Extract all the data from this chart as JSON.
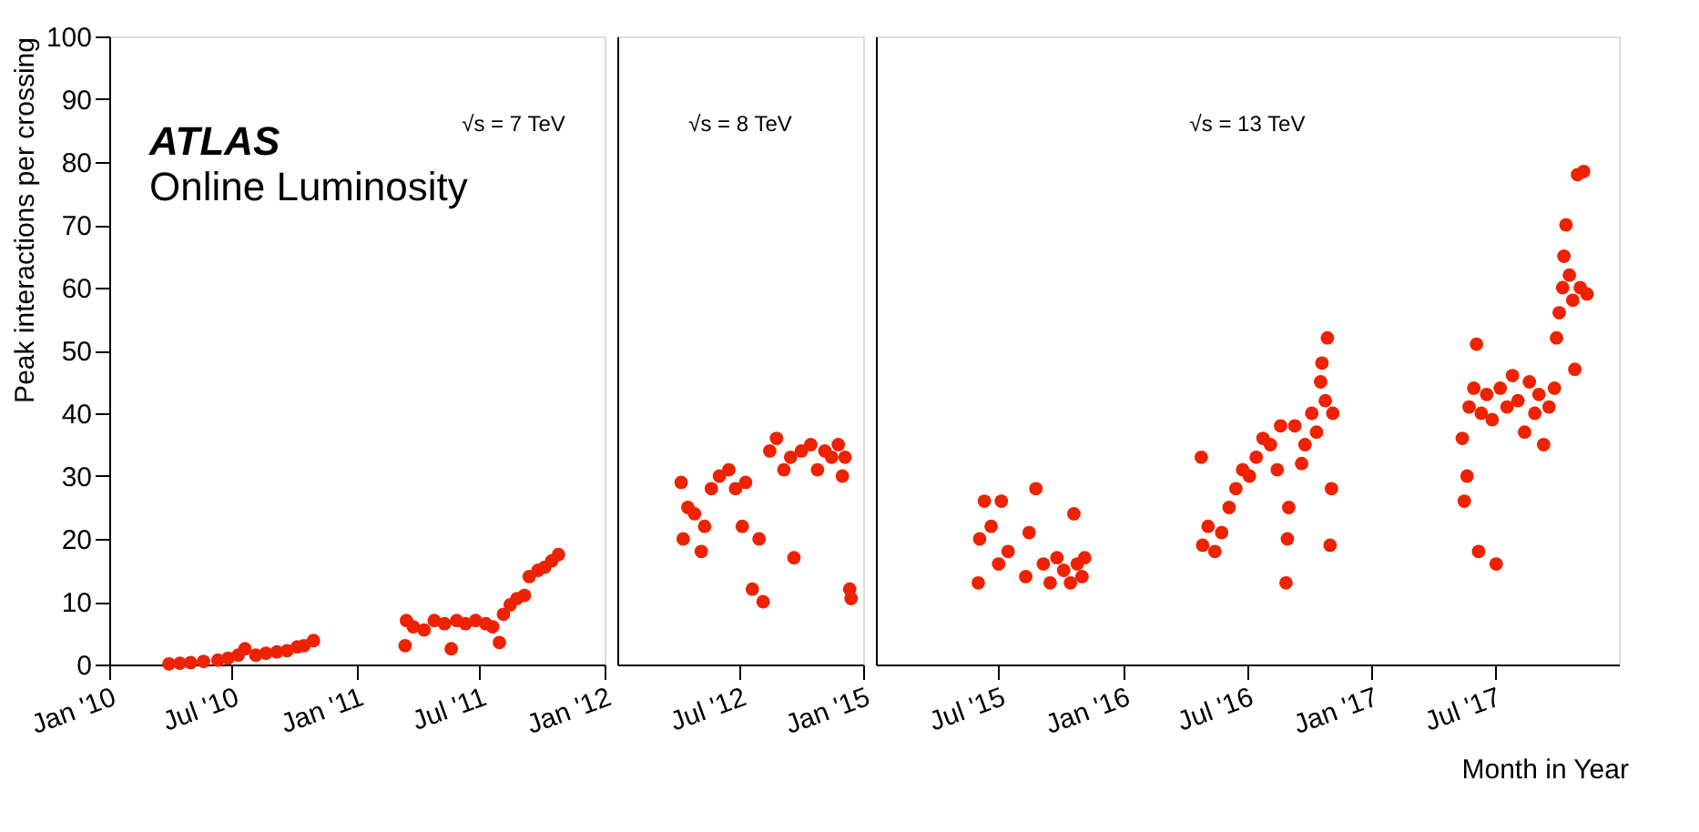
{
  "chart_data": [
    {
      "type": "scatter",
      "ylabel": "Peak interactions per crossing",
      "annotations": [
        "ATLAS",
        "Online Luminosity",
        "√s = 7 TeV"
      ],
      "color": "#ee2200",
      "marker": "circle",
      "grid": false,
      "x": [
        "2010-03-30",
        "2010-04-15",
        "2010-05-01",
        "2010-05-20",
        "2010-06-10",
        "2010-06-25",
        "2010-07-10",
        "2010-07-20",
        "2010-08-05",
        "2010-08-20",
        "2010-09-05",
        "2010-09-20",
        "2010-10-05",
        "2010-10-15",
        "2010-10-29",
        "2011-03-13",
        "2011-03-15",
        "2011-03-25",
        "2011-04-10",
        "2011-04-25",
        "2011-05-10",
        "2011-05-20",
        "2011-05-28",
        "2011-06-10",
        "2011-06-25",
        "2011-07-10",
        "2011-07-20",
        "2011-07-30",
        "2011-08-05",
        "2011-08-15",
        "2011-08-25",
        "2011-09-05",
        "2011-09-12",
        "2011-09-25",
        "2011-10-05",
        "2011-10-15",
        "2011-10-25"
      ],
      "values": [
        0.1,
        0.2,
        0.3,
        0.5,
        0.7,
        1.0,
        1.5,
        2.5,
        1.5,
        1.8,
        2.0,
        2.2,
        2.8,
        3.0,
        3.8,
        3,
        7,
        6,
        5.5,
        7,
        6.5,
        2.5,
        7,
        6.5,
        7,
        6.5,
        6,
        3.5,
        8,
        9.5,
        10.5,
        11,
        14,
        15,
        15.5,
        16.5,
        17.5
      ],
      "xlim": [
        "2010-01-01",
        "2012-01-01"
      ],
      "xticks": [
        {
          "value": "2010-01-01",
          "label": "Jan '10"
        },
        {
          "value": "2010-07-01",
          "label": "Jul '10"
        },
        {
          "value": "2011-01-01",
          "label": "Jan '11"
        },
        {
          "value": "2011-07-01",
          "label": "Jul '11"
        },
        {
          "value": "2012-01-01",
          "label": "Jan '12"
        }
      ],
      "ylim": [
        0,
        100
      ],
      "yticks": [
        0,
        10,
        20,
        30,
        40,
        50,
        60,
        70,
        80,
        90,
        100
      ]
    },
    {
      "type": "scatter",
      "annotations": [
        "√s = 8 TeV"
      ],
      "color": "#ee2200",
      "marker": "circle",
      "grid": false,
      "tick_labels": "x",
      "x": [
        "2012-04-05",
        "2012-04-08",
        "2012-04-15",
        "2012-04-25",
        "2012-05-05",
        "2012-05-10",
        "2012-05-20",
        "2012-06-01",
        "2012-06-15",
        "2012-06-25",
        "2012-07-05",
        "2012-07-10",
        "2012-07-20",
        "2012-07-30",
        "2012-08-05",
        "2012-08-15",
        "2012-08-25",
        "2012-09-05",
        "2012-09-15",
        "2012-09-20",
        "2012-10-01",
        "2012-10-15",
        "2012-10-25",
        "2012-11-05",
        "2012-11-15",
        "2012-11-25",
        "2012-12-01",
        "2012-12-05",
        "2012-12-12",
        "2012-12-14"
      ],
      "values": [
        29,
        20,
        25,
        24,
        18,
        22,
        28,
        30,
        31,
        28,
        22,
        29,
        12,
        20,
        10,
        34,
        36,
        31,
        33,
        17,
        34,
        35,
        31,
        34,
        33,
        35,
        30,
        33,
        12,
        10.5
      ],
      "xlim": [
        "2012-01-01",
        "2013-01-01"
      ],
      "xticks": [
        {
          "value": "2012-07-01",
          "label": "Jul '12"
        },
        {
          "value": "2013-01-01",
          "label": "Jan '15"
        }
      ],
      "ylim": [
        0,
        100
      ],
      "yticks": [
        0,
        10,
        20,
        30,
        40,
        50,
        60,
        70,
        80,
        90,
        100
      ]
    },
    {
      "type": "scatter",
      "xlabel": "Month in Year",
      "annotations": [
        "√s = 13 TeV"
      ],
      "color": "#ee2200",
      "marker": "circle",
      "grid": false,
      "tick_labels": "x",
      "x": [
        "2015-06-01",
        "2015-06-03",
        "2015-06-10",
        "2015-06-20",
        "2015-07-01",
        "2015-07-05",
        "2015-07-15",
        "2015-08-10",
        "2015-08-15",
        "2015-08-25",
        "2015-09-05",
        "2015-09-15",
        "2015-09-25",
        "2015-10-05",
        "2015-10-15",
        "2015-10-20",
        "2015-10-25",
        "2015-11-01",
        "2015-11-05",
        "2016-04-25",
        "2016-04-27",
        "2016-05-05",
        "2016-05-15",
        "2016-05-25",
        "2016-06-05",
        "2016-06-15",
        "2016-06-25",
        "2016-07-05",
        "2016-07-15",
        "2016-07-25",
        "2016-08-05",
        "2016-08-15",
        "2016-08-20",
        "2016-08-28",
        "2016-08-30",
        "2016-09-01",
        "2016-09-10",
        "2016-09-20",
        "2016-09-25",
        "2016-10-05",
        "2016-10-12",
        "2016-10-18",
        "2016-10-20",
        "2016-10-25",
        "2016-10-28",
        "2016-11-01",
        "2016-11-03",
        "2016-11-05",
        "2017-05-15",
        "2017-05-18",
        "2017-05-22",
        "2017-05-25",
        "2017-06-01",
        "2017-06-05",
        "2017-06-08",
        "2017-06-12",
        "2017-06-20",
        "2017-06-28",
        "2017-07-04",
        "2017-07-10",
        "2017-07-20",
        "2017-07-28",
        "2017-08-05",
        "2017-08-15",
        "2017-08-22",
        "2017-08-30",
        "2017-09-05",
        "2017-09-12",
        "2017-09-20",
        "2017-09-28",
        "2017-10-01",
        "2017-10-05",
        "2017-10-10",
        "2017-10-12",
        "2017-10-15",
        "2017-10-20",
        "2017-10-25",
        "2017-10-28",
        "2017-11-01",
        "2017-11-05",
        "2017-11-10",
        "2017-11-15"
      ],
      "values": [
        13,
        20,
        26,
        22,
        16,
        26,
        18,
        14,
        21,
        28,
        16,
        13,
        17,
        15,
        13,
        24,
        16,
        14,
        17,
        33,
        19,
        22,
        18,
        21,
        25,
        28,
        31,
        30,
        33,
        36,
        35,
        31,
        38,
        13,
        20,
        25,
        38,
        32,
        35,
        40,
        37,
        45,
        48,
        42,
        52,
        19,
        28,
        40,
        36,
        26,
        30,
        41,
        44,
        51,
        18,
        40,
        43,
        39,
        16,
        44,
        41,
        46,
        42,
        37,
        45,
        40,
        43,
        35,
        41,
        44,
        52,
        56,
        60,
        65,
        70,
        62,
        58,
        47,
        78,
        60,
        78.5,
        59
      ],
      "xlim": [
        "2015-01-01",
        "2018-01-01"
      ],
      "xticks": [
        {
          "value": "2015-07-01",
          "label": "Jul '15"
        },
        {
          "value": "2016-01-01",
          "label": "Jan '16"
        },
        {
          "value": "2016-07-01",
          "label": "Jul '16"
        },
        {
          "value": "2017-01-01",
          "label": "Jan '17"
        },
        {
          "value": "2017-07-01",
          "label": "Jul '17"
        }
      ],
      "ylim": [
        0,
        100
      ],
      "yticks": [
        0,
        10,
        20,
        30,
        40,
        50,
        60,
        70,
        80,
        90,
        100
      ]
    }
  ]
}
